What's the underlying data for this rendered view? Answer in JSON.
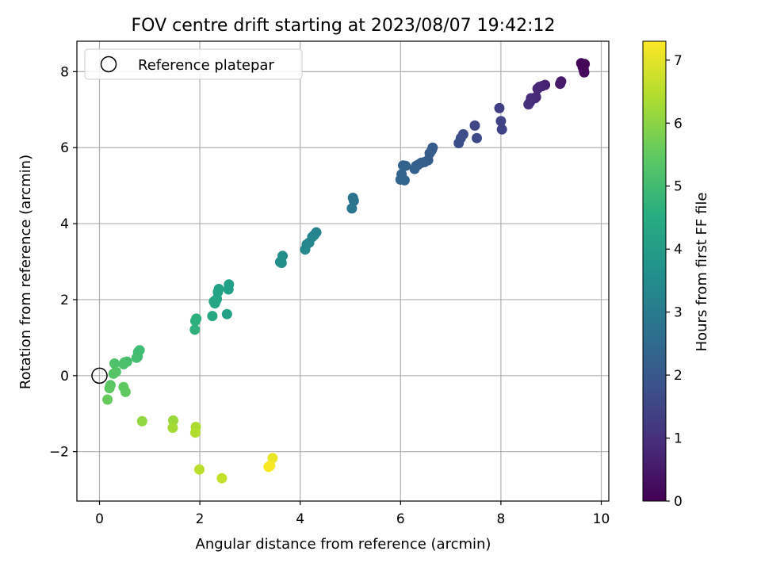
{
  "chart_data": {
    "type": "scatter",
    "title": "FOV centre drift starting at 2023/08/07 19:42:12",
    "xlabel": "Angular distance from reference (arcmin)",
    "ylabel": "Rotation from reference (arcmin)",
    "colorbar_label": "Hours from first FF file",
    "colormap": "viridis",
    "xlim": [
      -0.45,
      10.15
    ],
    "ylim": [
      -3.3,
      8.8
    ],
    "clim": [
      0,
      7.3
    ],
    "x_ticks": [
      0,
      2,
      4,
      6,
      8,
      10
    ],
    "y_ticks": [
      -2,
      0,
      2,
      4,
      6,
      8
    ],
    "colorbar_ticks": [
      0,
      1,
      2,
      3,
      4,
      5,
      6,
      7
    ],
    "grid": true,
    "legend": {
      "position": "top-left",
      "entries": [
        "Reference platepar"
      ]
    },
    "reference_point": {
      "x": 0,
      "y": 0
    },
    "series": [
      {
        "x": [
          9.6,
          9.67,
          9.63,
          9.65,
          9.66,
          9.2,
          9.18,
          8.88,
          8.82,
          8.77,
          8.73,
          8.68,
          8.7,
          8.6,
          8.58,
          8.55,
          7.97,
          8.0,
          8.02,
          7.48,
          7.52,
          7.25,
          7.2,
          7.16,
          6.64,
          6.62,
          6.58,
          6.55,
          6.48,
          6.41,
          6.35,
          6.31,
          6.28,
          6.1,
          6.05,
          6.02,
          6.0,
          6.08,
          5.05,
          5.07,
          5.03,
          4.32,
          4.28,
          4.24,
          4.18,
          4.13,
          4.1,
          3.65,
          3.63,
          3.6,
          2.58,
          2.57,
          2.54,
          2.38,
          2.36,
          2.34,
          2.32,
          2.3,
          2.28,
          2.25,
          1.93,
          1.91,
          1.9,
          0.8,
          0.77,
          0.76,
          0.74,
          0.55,
          0.5,
          0.48,
          0.3,
          0.33,
          0.28,
          0.22,
          0.2,
          0.48,
          0.52,
          0.16,
          0.85,
          1.47,
          1.46,
          1.92,
          1.91,
          1.99,
          2.44,
          3.45,
          3.4,
          3.37
        ],
        "y": [
          8.22,
          8.2,
          8.12,
          8.05,
          7.98,
          7.74,
          7.68,
          7.65,
          7.62,
          7.6,
          7.55,
          7.3,
          7.33,
          7.3,
          7.2,
          7.14,
          7.04,
          6.7,
          6.48,
          6.58,
          6.25,
          6.35,
          6.25,
          6.12,
          6.0,
          5.93,
          5.85,
          5.67,
          5.62,
          5.6,
          5.55,
          5.52,
          5.44,
          5.52,
          5.53,
          5.3,
          5.16,
          5.14,
          4.68,
          4.6,
          4.4,
          3.77,
          3.7,
          3.65,
          3.5,
          3.45,
          3.32,
          3.15,
          2.97,
          2.99,
          2.4,
          2.27,
          1.62,
          2.28,
          2.2,
          2.02,
          1.96,
          1.9,
          1.95,
          1.57,
          1.5,
          1.44,
          1.21,
          0.67,
          0.62,
          0.5,
          0.47,
          0.37,
          0.35,
          0.3,
          0.32,
          0.1,
          0.05,
          -0.25,
          -0.33,
          -0.3,
          -0.43,
          -0.63,
          -1.2,
          -1.18,
          -1.37,
          -1.35,
          -1.5,
          -2.47,
          -2.7,
          -2.17,
          -2.37,
          -2.4
        ],
        "hours": [
          0.05,
          0.05,
          0.1,
          0.12,
          0.13,
          0.5,
          0.52,
          0.65,
          0.7,
          0.75,
          0.78,
          0.85,
          0.83,
          0.9,
          0.95,
          0.98,
          1.35,
          1.45,
          1.47,
          1.55,
          1.6,
          1.65,
          1.7,
          1.72,
          2.05,
          2.08,
          2.1,
          2.12,
          2.15,
          2.18,
          2.2,
          2.22,
          2.25,
          2.28,
          2.3,
          2.32,
          2.33,
          2.35,
          2.8,
          2.82,
          2.85,
          3.3,
          3.32,
          3.35,
          3.38,
          3.4,
          3.42,
          3.55,
          3.58,
          3.6,
          4.1,
          4.12,
          4.15,
          4.2,
          4.22,
          4.25,
          4.27,
          4.3,
          4.32,
          4.35,
          4.6,
          4.62,
          4.65,
          5.0,
          5.02,
          5.05,
          5.08,
          5.15,
          5.18,
          5.2,
          5.25,
          5.3,
          5.35,
          5.4,
          5.45,
          5.48,
          5.5,
          5.55,
          6.1,
          6.2,
          6.3,
          6.4,
          6.45,
          6.55,
          6.65,
          7.1,
          7.2,
          7.25
        ]
      }
    ]
  }
}
